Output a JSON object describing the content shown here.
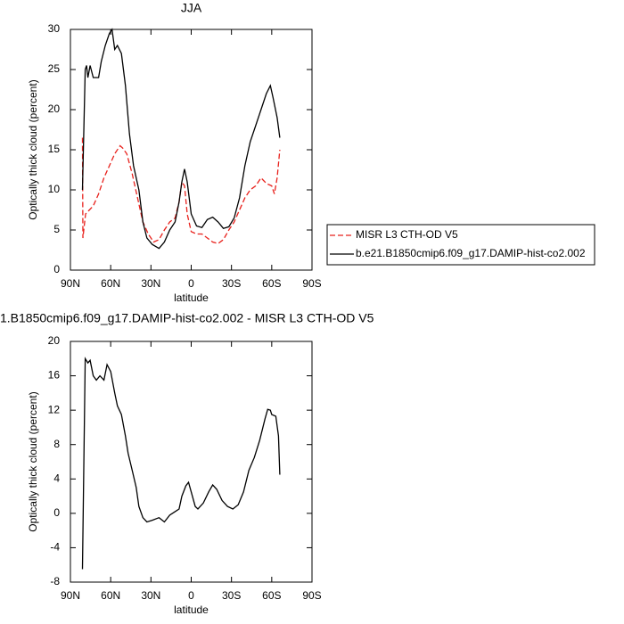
{
  "chart_data": [
    {
      "type": "line",
      "title": "JJA",
      "xlabel": "latitude",
      "ylabel": "Optically thick cloud (percent)",
      "xlim": [
        90,
        -90
      ],
      "xticks": [
        {
          "value": 90,
          "label": "90N"
        },
        {
          "value": 60,
          "label": "60N"
        },
        {
          "value": 30,
          "label": "30N"
        },
        0,
        {
          "value": -30,
          "label": "30S"
        },
        {
          "value": -60,
          "label": "60S"
        },
        {
          "value": -90,
          "label": "90S"
        }
      ],
      "ylim": [
        0,
        30
      ],
      "yticks": [
        0,
        5,
        10,
        15,
        20,
        25,
        30
      ],
      "legend": "right",
      "series": [
        {
          "name": "MISR L3 CTH-OD V5",
          "color": "#e8211c",
          "dash": true,
          "x": [
            81,
            80.7,
            78.7,
            73,
            69,
            65,
            61,
            57,
            53,
            51,
            48,
            44,
            40,
            36,
            32,
            28,
            24,
            20,
            16,
            12,
            9,
            7,
            5,
            3,
            0,
            -4,
            -8,
            -12,
            -16,
            -20,
            -24,
            -28,
            -32,
            -36,
            -40,
            -44,
            -48,
            -52,
            -56,
            -60,
            -62,
            -64,
            -66
          ],
          "values": [
            16.5,
            4,
            7,
            8,
            9.5,
            11.5,
            13,
            14.5,
            15.5,
            15.2,
            14.5,
            12,
            9,
            6,
            4.5,
            3.5,
            3.8,
            5,
            6,
            6.5,
            8.5,
            11,
            10.5,
            7,
            4.8,
            4.5,
            4.5,
            4,
            3.5,
            3.3,
            3.8,
            5,
            6,
            7.5,
            9,
            10,
            10.5,
            11.5,
            10.8,
            10.5,
            9.5,
            11.5,
            15
          ]
        },
        {
          "name": "b.e21.B1850cmip6.f09_g17.DAMIP-hist-co2.002",
          "color": "#000000",
          "dash": false,
          "x": [
            81,
            79,
            78,
            77,
            75.3,
            73,
            69,
            67,
            64,
            61,
            59,
            57,
            55,
            52,
            49,
            46,
            43,
            39,
            36,
            33,
            29,
            24,
            20,
            16,
            12,
            9,
            7,
            5,
            3,
            0,
            -4,
            -8,
            -12,
            -16,
            -20,
            -24,
            -28,
            -32,
            -36,
            -40,
            -44,
            -48,
            -52,
            -56,
            -59,
            -61,
            -64,
            -66
          ],
          "values": [
            10,
            25,
            25.5,
            24,
            25.5,
            24,
            24,
            26,
            28,
            29.5,
            30,
            27.5,
            28,
            27,
            23,
            17,
            13,
            10,
            6,
            4,
            3.2,
            2.7,
            3.5,
            5,
            6,
            8.5,
            11,
            12.6,
            11,
            7,
            5.5,
            5.3,
            6.3,
            6.6,
            6,
            5.2,
            5.4,
            6.5,
            9,
            13,
            16,
            18,
            20,
            22,
            23,
            21.5,
            19,
            16.5
          ]
        }
      ]
    },
    {
      "type": "line",
      "title": "1.B1850cmip6.f09_g17.DAMIP-hist-co2.002 - MISR L3 CTH-OD V5",
      "xlabel": "latitude",
      "ylabel": "Optically thick cloud (percent)",
      "xlim": [
        90,
        -90
      ],
      "xticks": [
        {
          "value": 90,
          "label": "90N"
        },
        {
          "value": 60,
          "label": "60N"
        },
        {
          "value": 30,
          "label": "30N"
        },
        0,
        {
          "value": -30,
          "label": "30S"
        },
        {
          "value": -60,
          "label": "60S"
        },
        {
          "value": -90,
          "label": "90S"
        }
      ],
      "ylim": [
        -8,
        20
      ],
      "yticks": [
        -8,
        -4,
        0,
        4,
        8,
        12,
        16,
        20
      ],
      "series": [
        {
          "color": "#000000",
          "x": [
            81,
            79,
            77,
            75.3,
            73,
            70.7,
            68,
            65,
            62.7,
            60,
            57,
            55,
            52,
            49,
            47,
            44,
            41,
            39,
            36,
            33,
            29,
            24,
            20,
            16,
            12,
            9,
            7,
            4,
            2,
            0,
            -3,
            -5,
            -9,
            -13,
            -16,
            -19,
            -23,
            -27,
            -31,
            -35,
            -39,
            -43,
            -47,
            -51,
            -55,
            -57,
            -59,
            -60,
            -63,
            -65,
            -66
          ],
          "values": [
            -6.5,
            18,
            17.5,
            17.8,
            16,
            15.5,
            16,
            15.5,
            17.3,
            16.5,
            14,
            12.5,
            11.5,
            9,
            7,
            5,
            3,
            0.8,
            -0.5,
            -1,
            -0.8,
            -0.5,
            -1,
            -0.2,
            0.2,
            0.5,
            2,
            3.2,
            3.6,
            2.5,
            0.8,
            0.5,
            1.2,
            2.5,
            3.3,
            2.8,
            1.5,
            0.8,
            0.5,
            1,
            2.5,
            5,
            6.5,
            8.5,
            11,
            12.1,
            12,
            11.5,
            11.3,
            9,
            4.5
          ]
        }
      ]
    }
  ]
}
